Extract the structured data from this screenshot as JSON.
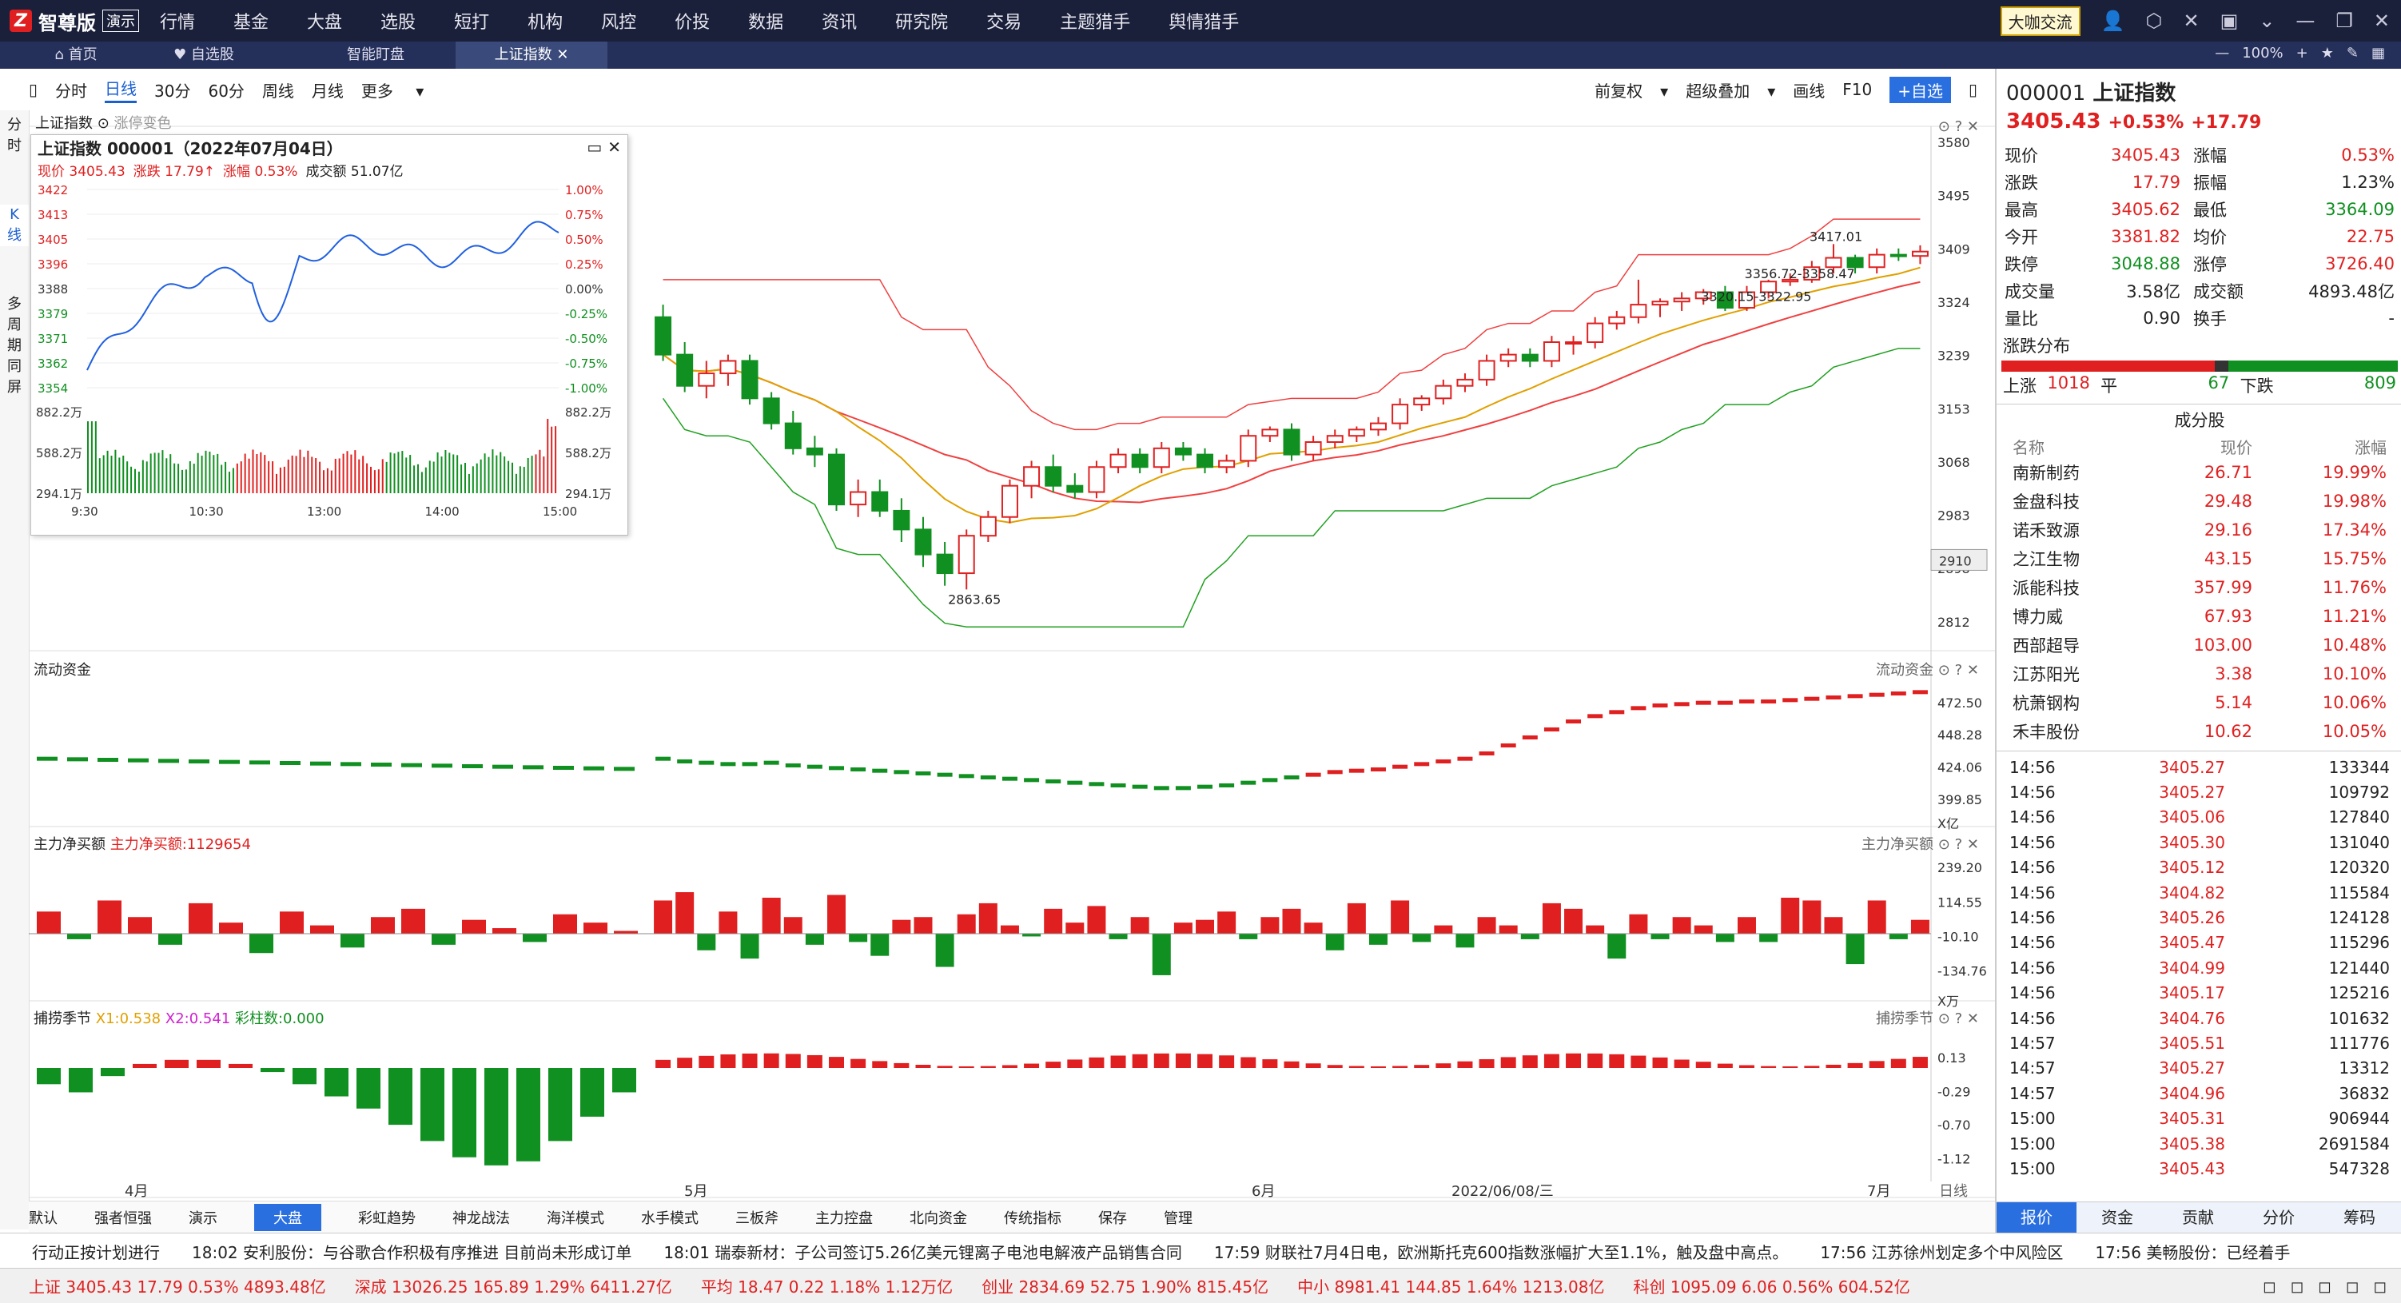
{
  "app": {
    "brand": "智尊版",
    "demo": "演示",
    "exchange": "大咖交流",
    "zoom": "100%"
  },
  "menu": [
    "行情",
    "基金",
    "大盘",
    "选股",
    "短打",
    "机构",
    "风控",
    "价投",
    "数据",
    "资讯",
    "研究院",
    "交易",
    "主题猎手",
    "舆情猎手"
  ],
  "tabs": [
    "首页",
    "自选股",
    "智能盯盘",
    "上证指数"
  ],
  "toolbar": {
    "periods": [
      "分时",
      "日线",
      "30分",
      "60分",
      "周线",
      "月线",
      "更多"
    ],
    "right": [
      "前复权",
      "超级叠加",
      "画线",
      "F10",
      "+自选"
    ]
  },
  "left_tabs": [
    "分时",
    "K线",
    "多周期同屏"
  ],
  "chart": {
    "index_label": "上证指数",
    "extra_label": "涨停变色",
    "price_ticks": [
      "3580",
      "3495",
      "3409",
      "3324",
      "3239",
      "3153",
      "3068",
      "2983",
      "2898",
      "2812"
    ],
    "current_price_tag": "2910",
    "annotations": [
      "3417.01",
      "3356.72-3358.47",
      "3320.15-3322.95",
      "2863.65"
    ],
    "flow_title": "流动资金",
    "flow_ticks": [
      "472.50",
      "448.28",
      "424.06",
      "399.85"
    ],
    "flow_unit": "X亿",
    "main_title": "主力净买额",
    "main_value_label": "主力净买额:1129654",
    "main_ticks": [
      "239.20",
      "114.55",
      "-10.10",
      "-134.76"
    ],
    "main_unit": "X万",
    "season_title": "捕捞季节",
    "season_x1": "X1:0.538",
    "season_x2": "X2:0.541",
    "season_bar": "彩柱数:0.000",
    "season_ticks": [
      "0.13",
      "-0.29",
      "-0.70",
      "-1.12"
    ],
    "x_labels": [
      "4月",
      "5月",
      "6月",
      "2022/06/08/三",
      "7月"
    ],
    "x_right": "日线"
  },
  "mini": {
    "title": "上证指数 000001（2022年07月04日）",
    "now_label": "现价",
    "now": "3405.43",
    "chg_label": "涨跌",
    "chg": "17.79↑",
    "pct_label": "涨幅",
    "pct": "0.53%",
    "amt_label": "成交额",
    "amt": "51.07亿",
    "left_ticks": [
      "3422",
      "3413",
      "3405",
      "3396",
      "3388",
      "3379",
      "3371",
      "3362",
      "3354"
    ],
    "right_ticks": [
      "1.00%",
      "0.75%",
      "0.50%",
      "0.25%",
      "0.00%",
      "-0.25%",
      "-0.50%",
      "-0.75%",
      "-1.00%"
    ],
    "vol_ticks": [
      "882.2万",
      "588.2万",
      "294.1万"
    ],
    "times": [
      "9:30",
      "10:30",
      "13:00",
      "14:00",
      "15:00"
    ]
  },
  "quote": {
    "code": "000001",
    "name": "上证指数",
    "price": "3405.43",
    "pct": "+0.53%",
    "chg": "+17.79",
    "rows": [
      [
        "现价",
        "3405.43",
        "涨幅",
        "0.53%"
      ],
      [
        "涨跌",
        "17.79",
        "振幅",
        "1.23%"
      ],
      [
        "最高",
        "3405.62",
        "最低",
        "3364.09"
      ],
      [
        "今开",
        "3381.82",
        "均价",
        "22.75"
      ],
      [
        "跌停",
        "3048.88",
        "涨停",
        "3726.40"
      ],
      [
        "成交量",
        "3.58亿",
        "成交额",
        "4893.48亿"
      ],
      [
        "量比",
        "0.90",
        "换手",
        "-"
      ]
    ],
    "dist_title": "涨跌分布",
    "up_label": "上涨",
    "up": "1018",
    "flat_label": "平",
    "flat": "67",
    "down_label": "下跌",
    "down": "809",
    "comp_title": "成分股",
    "comp_headers": [
      "名称",
      "现价",
      "涨幅"
    ],
    "components": [
      [
        "南新制药",
        "26.71",
        "19.99%"
      ],
      [
        "金盘科技",
        "29.48",
        "19.98%"
      ],
      [
        "诺禾致源",
        "29.16",
        "17.34%"
      ],
      [
        "之江生物",
        "43.15",
        "15.75%"
      ],
      [
        "派能科技",
        "357.99",
        "11.76%"
      ],
      [
        "博力威",
        "67.93",
        "11.21%"
      ],
      [
        "西部超导",
        "103.00",
        "10.48%"
      ],
      [
        "江苏阳光",
        "3.38",
        "10.10%"
      ],
      [
        "杭萧钢构",
        "5.14",
        "10.06%"
      ],
      [
        "禾丰股份",
        "10.62",
        "10.05%"
      ]
    ],
    "ticks": [
      [
        "14:56",
        "3405.27",
        "133344"
      ],
      [
        "14:56",
        "3405.27",
        "109792"
      ],
      [
        "14:56",
        "3405.06",
        "127840"
      ],
      [
        "14:56",
        "3405.30",
        "131040"
      ],
      [
        "14:56",
        "3405.12",
        "120320"
      ],
      [
        "14:56",
        "3404.82",
        "115584"
      ],
      [
        "14:56",
        "3405.26",
        "124128"
      ],
      [
        "14:56",
        "3405.47",
        "115296"
      ],
      [
        "14:56",
        "3404.99",
        "121440"
      ],
      [
        "14:56",
        "3405.17",
        "125216"
      ],
      [
        "14:56",
        "3404.76",
        "101632"
      ],
      [
        "14:57",
        "3405.51",
        "111776"
      ],
      [
        "14:57",
        "3405.27",
        "13312"
      ],
      [
        "14:57",
        "3404.96",
        "36832"
      ],
      [
        "15:00",
        "3405.31",
        "906944"
      ],
      [
        "15:00",
        "3405.38",
        "2691584"
      ],
      [
        "15:00",
        "3405.43",
        "547328"
      ]
    ],
    "bottom_tabs": [
      "报价",
      "资金",
      "贡献",
      "分价",
      "筹码"
    ]
  },
  "bottom_tabs": [
    "默认",
    "强者恒强",
    "演示",
    "大盘",
    "彩虹趋势",
    "神龙战法",
    "海洋模式",
    "水手模式",
    "三板斧",
    "主力控盘",
    "北向资金",
    "传统指标",
    "保存",
    "管理"
  ],
  "news": [
    "行动正按计划进行",
    "18:02 安利股份：与谷歌合作积极有序推进 目前尚未形成订单",
    "18:01 瑞泰新材：子公司签订5.26亿美元锂离子电池电解液产品销售合同",
    "17:59 财联社7月4日电，欧洲斯托克600指数涨幅扩大至1.1%，触及盘中高点。",
    "17:56 江苏徐州划定多个中风险区",
    "17:56 美畅股份：已经着手"
  ],
  "status": [
    {
      "name": "上证",
      "v": "3405.43",
      "c": "17.79",
      "p": "0.53%",
      "a": "4893.48亿"
    },
    {
      "name": "深成",
      "v": "13026.25",
      "c": "165.89",
      "p": "1.29%",
      "a": "6411.27亿"
    },
    {
      "name": "平均",
      "v": "18.47",
      "c": "0.22",
      "p": "1.18%",
      "a": "1.12万亿"
    },
    {
      "name": "创业",
      "v": "2834.69",
      "c": "52.75",
      "p": "1.90%",
      "a": "815.45亿"
    },
    {
      "name": "中小",
      "v": "8981.41",
      "c": "144.85",
      "p": "1.64%",
      "a": "1213.08亿"
    },
    {
      "name": "科创",
      "v": "1095.09",
      "c": "6.06",
      "p": "0.56%",
      "a": "604.52亿"
    }
  ],
  "colors": {
    "up": "#e02020",
    "down": "#109020",
    "accent": "#2a6fe0"
  },
  "chart_data": {
    "type": "candlestick",
    "candles": [
      [
        3300,
        3240,
        3320,
        3230
      ],
      [
        3240,
        3190,
        3260,
        3180
      ],
      [
        3190,
        3210,
        3230,
        3170
      ],
      [
        3210,
        3230,
        3240,
        3190
      ],
      [
        3230,
        3170,
        3240,
        3160
      ],
      [
        3170,
        3130,
        3180,
        3120
      ],
      [
        3130,
        3090,
        3150,
        3080
      ],
      [
        3090,
        3080,
        3110,
        3060
      ],
      [
        3080,
        3000,
        3090,
        2990
      ],
      [
        3000,
        3020,
        3040,
        2980
      ],
      [
        3020,
        2990,
        3040,
        2980
      ],
      [
        2990,
        2960,
        3010,
        2940
      ],
      [
        2960,
        2920,
        2980,
        2900
      ],
      [
        2920,
        2890,
        2940,
        2870
      ],
      [
        2890,
        2950,
        2960,
        2864
      ],
      [
        2950,
        2980,
        2990,
        2940
      ],
      [
        2980,
        3030,
        3040,
        2970
      ],
      [
        3030,
        3060,
        3070,
        3010
      ],
      [
        3060,
        3030,
        3080,
        3020
      ],
      [
        3030,
        3020,
        3050,
        3010
      ],
      [
        3020,
        3060,
        3070,
        3010
      ],
      [
        3060,
        3080,
        3090,
        3050
      ],
      [
        3080,
        3060,
        3090,
        3050
      ],
      [
        3060,
        3090,
        3100,
        3050
      ],
      [
        3090,
        3080,
        3100,
        3070
      ],
      [
        3080,
        3060,
        3090,
        3050
      ],
      [
        3060,
        3070,
        3080,
        3050
      ],
      [
        3070,
        3110,
        3120,
        3060
      ],
      [
        3110,
        3120,
        3125,
        3100
      ],
      [
        3120,
        3080,
        3130,
        3070
      ],
      [
        3080,
        3100,
        3110,
        3070
      ],
      [
        3100,
        3110,
        3120,
        3090
      ],
      [
        3110,
        3120,
        3125,
        3100
      ],
      [
        3120,
        3130,
        3140,
        3110
      ],
      [
        3130,
        3160,
        3170,
        3120
      ],
      [
        3160,
        3170,
        3175,
        3150
      ],
      [
        3170,
        3190,
        3200,
        3160
      ],
      [
        3190,
        3200,
        3210,
        3180
      ],
      [
        3200,
        3230,
        3240,
        3190
      ],
      [
        3230,
        3240,
        3250,
        3220
      ],
      [
        3240,
        3230,
        3250,
        3220
      ],
      [
        3230,
        3260,
        3270,
        3220
      ],
      [
        3260,
        3260,
        3270,
        3240
      ],
      [
        3260,
        3290,
        3300,
        3250
      ],
      [
        3290,
        3300,
        3310,
        3280
      ],
      [
        3300,
        3320,
        3360,
        3290
      ],
      [
        3320,
        3325,
        3330,
        3300
      ],
      [
        3325,
        3330,
        3340,
        3310
      ],
      [
        3330,
        3340,
        3345,
        3320
      ],
      [
        3340,
        3315,
        3350,
        3310
      ],
      [
        3315,
        3340,
        3350,
        3310
      ],
      [
        3340,
        3357,
        3360,
        3330
      ],
      [
        3357,
        3360,
        3370,
        3350
      ],
      [
        3360,
        3380,
        3390,
        3355
      ],
      [
        3380,
        3395,
        3417,
        3370
      ],
      [
        3395,
        3380,
        3400,
        3370
      ],
      [
        3380,
        3400,
        3410,
        3370
      ],
      [
        3400,
        3398,
        3410,
        3390
      ],
      [
        3398,
        3405,
        3415,
        3385
      ]
    ],
    "ylim": [
      2812,
      3580
    ]
  }
}
